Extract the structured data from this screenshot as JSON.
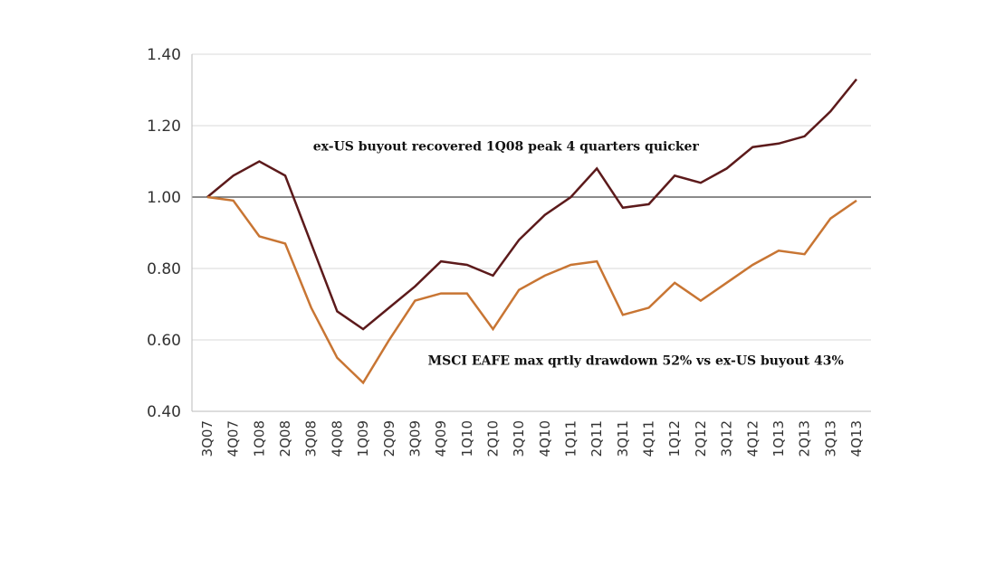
{
  "chart_data": {
    "type": "line",
    "title": "",
    "xlabel": "",
    "ylabel": "",
    "ylim": [
      0.4,
      1.4
    ],
    "yticks": [
      "0.40",
      "0.60",
      "0.80",
      "1.00",
      "1.20",
      "1.40"
    ],
    "grid": true,
    "reference_line": 1.0,
    "categories": [
      "3Q07",
      "4Q07",
      "1Q08",
      "2Q08",
      "3Q08",
      "4Q08",
      "1Q09",
      "2Q09",
      "3Q09",
      "4Q09",
      "1Q10",
      "2Q10",
      "3Q10",
      "4Q10",
      "1Q11",
      "2Q11",
      "3Q11",
      "4Q11",
      "1Q12",
      "2Q12",
      "3Q12",
      "4Q12",
      "1Q13",
      "2Q13",
      "3Q13",
      "4Q13"
    ],
    "series": [
      {
        "color": "#5c1a1b",
        "values": [
          1.0,
          1.06,
          1.1,
          1.06,
          0.87,
          0.68,
          0.63,
          0.69,
          0.75,
          0.82,
          0.81,
          0.78,
          0.88,
          0.95,
          1.0,
          1.08,
          0.97,
          0.98,
          1.06,
          1.04,
          1.08,
          1.14,
          1.15,
          1.17,
          1.24,
          1.33
        ]
      },
      {
        "color": "#c87533",
        "values": [
          1.0,
          0.99,
          0.89,
          0.87,
          0.69,
          0.55,
          0.48,
          0.6,
          0.71,
          0.73,
          0.73,
          0.63,
          0.74,
          0.78,
          0.81,
          0.82,
          0.67,
          0.69,
          0.76,
          0.71,
          0.76,
          0.81,
          0.85,
          0.84,
          0.94,
          0.99
        ]
      }
    ],
    "annotations": [
      {
        "text": "ex-US buyout recovered 1Q08 peak 4 quarters quicker",
        "x_index": 11.5,
        "y": 1.13
      },
      {
        "text": "MSCI EAFE max qrtly drawdown 52% vs ex-US buyout 43%",
        "x_index": 16.5,
        "y": 0.53
      }
    ]
  }
}
